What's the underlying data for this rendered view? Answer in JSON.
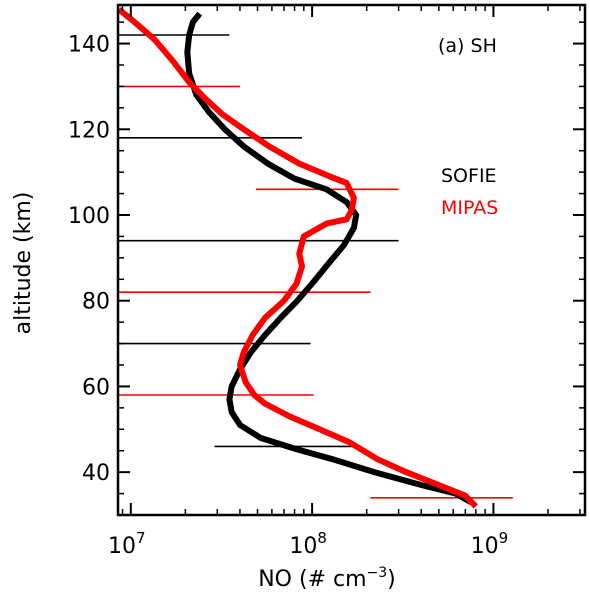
{
  "chart_data": {
    "type": "line",
    "title": "",
    "annotation": "(a) SH",
    "xlabel": "NO (# cm",
    "xlabel_sup": "−3",
    "xlabel_close": ")",
    "ylabel": "altitude (km)",
    "xscale": "log",
    "xlim": [
      8500000.0,
      3200000000.0
    ],
    "ylim": [
      30,
      149
    ],
    "x_ticks": [
      {
        "value": 10000000.0,
        "base": "10",
        "exp": "7"
      },
      {
        "value": 100000000.0,
        "base": "10",
        "exp": "8"
      },
      {
        "value": 1000000000.0,
        "base": "10",
        "exp": "9"
      }
    ],
    "y_ticks": [
      40,
      60,
      80,
      100,
      120,
      140
    ],
    "grid": false,
    "legend_position": "right-middle",
    "series": [
      {
        "name": "SOFIE",
        "color": "#000000",
        "points": [
          [
            24000000.0,
            147
          ],
          [
            22000000.0,
            145
          ],
          [
            21000000.0,
            142
          ],
          [
            20500000.0,
            138
          ],
          [
            21000000.0,
            133
          ],
          [
            23000000.0,
            128
          ],
          [
            27000000.0,
            124
          ],
          [
            33000000.0,
            120
          ],
          [
            42000000.0,
            116
          ],
          [
            57000000.0,
            112
          ],
          [
            80000000.0,
            108.5
          ],
          [
            120000000.0,
            106
          ],
          [
            155000000.0,
            103
          ],
          [
            175000000.0,
            100
          ],
          [
            170000000.0,
            97
          ],
          [
            150000000.0,
            93
          ],
          [
            125000000.0,
            89
          ],
          [
            100000000.0,
            84
          ],
          [
            83000000.0,
            80
          ],
          [
            67000000.0,
            76
          ],
          [
            55000000.0,
            72
          ],
          [
            46000000.0,
            68
          ],
          [
            40000000.0,
            64
          ],
          [
            36000000.0,
            60
          ],
          [
            35000000.0,
            57
          ],
          [
            36000000.0,
            54
          ],
          [
            40000000.0,
            51
          ],
          [
            52000000.0,
            48
          ],
          [
            80000000.0,
            45.5
          ],
          [
            130000000.0,
            43
          ],
          [
            220000000.0,
            40
          ],
          [
            400000000.0,
            37
          ],
          [
            620000000.0,
            35
          ],
          [
            750000000.0,
            33
          ]
        ]
      },
      {
        "name": "MIPAS",
        "color": "#ff0000",
        "points": [
          [
            8600000.0,
            148
          ],
          [
            10500000.0,
            145
          ],
          [
            13500000.0,
            141
          ],
          [
            17000000.0,
            136
          ],
          [
            21000000.0,
            131
          ],
          [
            26000000.0,
            127
          ],
          [
            32000000.0,
            123.5
          ],
          [
            42000000.0,
            120
          ],
          [
            58000000.0,
            116
          ],
          [
            85000000.0,
            112
          ],
          [
            125000000.0,
            109
          ],
          [
            155000000.0,
            107.5
          ],
          [
            170000000.0,
            104
          ],
          [
            165000000.0,
            101
          ],
          [
            155000000.0,
            99
          ],
          [
            120000000.0,
            98
          ],
          [
            90000000.0,
            95
          ],
          [
            85000000.0,
            91
          ],
          [
            88000000.0,
            88
          ],
          [
            82000000.0,
            84
          ],
          [
            70000000.0,
            80
          ],
          [
            55000000.0,
            76
          ],
          [
            47000000.0,
            72
          ],
          [
            42000000.0,
            68
          ],
          [
            40000000.0,
            65
          ],
          [
            43000000.0,
            61
          ],
          [
            48000000.0,
            58
          ],
          [
            55000000.0,
            56
          ],
          [
            75000000.0,
            53
          ],
          [
            110000000.0,
            50
          ],
          [
            160000000.0,
            47
          ],
          [
            230000000.0,
            43
          ],
          [
            330000000.0,
            40
          ],
          [
            500000000.0,
            37
          ],
          [
            700000000.0,
            34.5
          ],
          [
            800000000.0,
            32
          ]
        ]
      }
    ],
    "error_bars": [
      {
        "series": "SOFIE",
        "y": 142,
        "x_lo": 8500000.0,
        "x_hi": 35000000.0
      },
      {
        "series": "MIPAS",
        "y": 130,
        "x_lo": 8500000.0,
        "x_hi": 40000000.0
      },
      {
        "series": "SOFIE",
        "y": 118,
        "x_lo": 8500000.0,
        "x_hi": 88000000.0
      },
      {
        "series": "MIPAS",
        "y": 106,
        "x_lo": 49000000.0,
        "x_hi": 300000000.0
      },
      {
        "series": "SOFIE",
        "y": 94,
        "x_lo": 8500000.0,
        "x_hi": 300000000.0
      },
      {
        "series": "MIPAS",
        "y": 82,
        "x_lo": 8500000.0,
        "x_hi": 210000000.0
      },
      {
        "series": "SOFIE",
        "y": 70,
        "x_lo": 8500000.0,
        "x_hi": 98000000.0
      },
      {
        "series": "MIPAS",
        "y": 58,
        "x_lo": 8500000.0,
        "x_hi": 102000000.0
      },
      {
        "series": "SOFIE",
        "y": 46,
        "x_lo": 29000000.0,
        "x_hi": 180000000.0
      },
      {
        "series": "MIPAS",
        "y": 34,
        "x_lo": 210000000.0,
        "x_hi": 1280000000.0
      }
    ]
  }
}
